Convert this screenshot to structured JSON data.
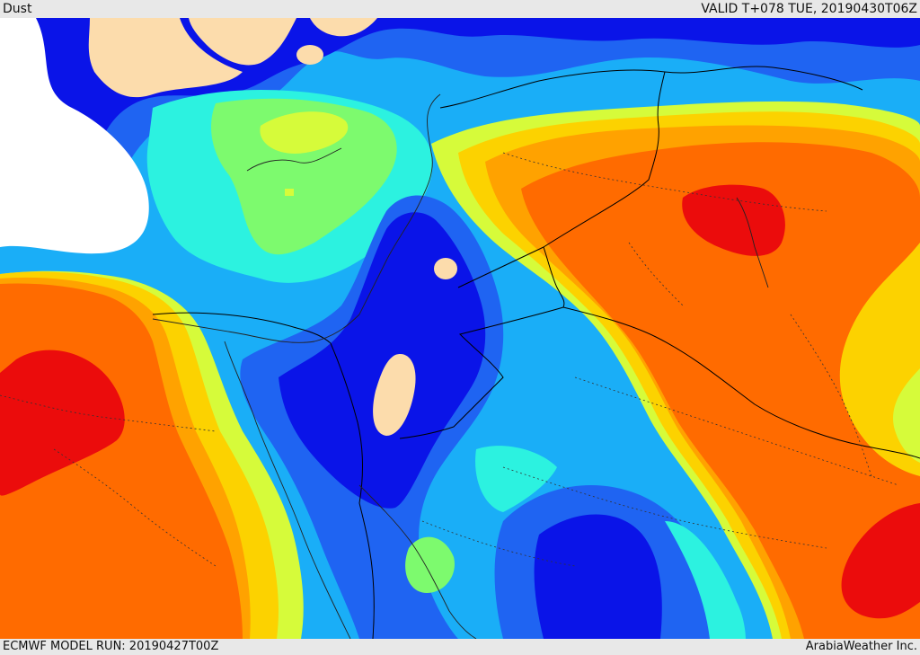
{
  "header": {
    "title": "Dust",
    "valid": "VALID T+078 TUE, 20190430T06Z"
  },
  "footer": {
    "model_run": "ECMWF MODEL RUN: 20190427T00Z",
    "credit": "ArabiaWeather Inc."
  },
  "palette": {
    "peach": "#fcdcac",
    "navy": "#0a14e8",
    "blue": "#1f64f2",
    "sky": "#1aaef7",
    "cyan": "#2cf2e0",
    "green": "#7dfa6e",
    "yellow_green": "#d6fb3a",
    "yellow": "#fcd200",
    "orange_light": "#ffa200",
    "orange": "#ff6b00",
    "red": "#eb0c0c",
    "land_none": "#ffffff"
  }
}
